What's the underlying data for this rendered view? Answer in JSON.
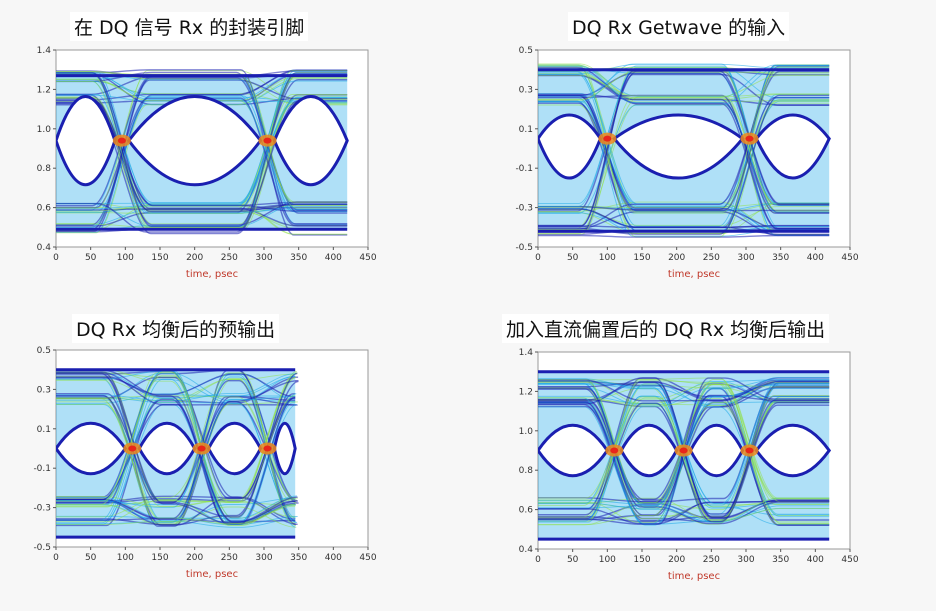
{
  "colors": {
    "eye_outer": "#1a1fb0",
    "eye_mid": "#1aa7e8",
    "eye_inner": "#8fe04a",
    "hot": "#f08a1a",
    "hot_core": "#e8261a",
    "axis_label": "#c0392b"
  },
  "chart_data": [
    {
      "type": "scatter",
      "title": "在 DQ 信号 Rx 的封装引脚",
      "xlabel": "time, psec",
      "ylabel": "",
      "xlim": [
        0,
        450
      ],
      "ylim": [
        0.4,
        1.4
      ],
      "xticks": [
        0,
        50,
        100,
        150,
        200,
        250,
        300,
        350,
        400,
        450
      ],
      "yticks": [
        0.4,
        0.6,
        0.8,
        1.0,
        1.2,
        1.4
      ],
      "xtick_labels": [
        "0",
        "50",
        "100",
        "150",
        "200",
        "250",
        "300",
        "350",
        "400",
        "450"
      ],
      "ytick_labels": [
        "0.4",
        "0.6",
        "0.8",
        "1.0",
        "1.2",
        "1.4"
      ],
      "data_xrange": [
        0,
        420
      ],
      "rails": {
        "high": 1.27,
        "low": 0.49
      },
      "high_levels": [
        1.15,
        1.27
      ],
      "low_levels": [
        0.6,
        0.49
      ],
      "crossings": [
        95,
        305
      ],
      "crossing_level": 0.94,
      "eye_opening": {
        "high": 1.22,
        "low": 0.66
      },
      "grid": false
    },
    {
      "type": "scatter",
      "title": "DQ Rx Getwave 的输入",
      "xlabel": "time, psec",
      "ylabel": "",
      "xlim": [
        0,
        450
      ],
      "ylim": [
        -0.5,
        0.5
      ],
      "xticks": [
        0,
        50,
        100,
        150,
        200,
        250,
        300,
        350,
        400,
        450
      ],
      "yticks": [
        -0.5,
        -0.3,
        -0.1,
        0.1,
        0.3,
        0.5
      ],
      "xtick_labels": [
        "0",
        "50",
        "100",
        "150",
        "200",
        "250",
        "300",
        "350",
        "400",
        "450"
      ],
      "ytick_labels": [
        "-0.5",
        "-0.3",
        "-0.1",
        "0.1",
        "0.3",
        "0.5"
      ],
      "data_xrange": [
        0,
        420
      ],
      "rails": {
        "high": 0.4,
        "low": -0.42
      },
      "high_levels": [
        0.25,
        0.4
      ],
      "low_levels": [
        -0.3,
        -0.42
      ],
      "crossings": [
        100,
        305
      ],
      "crossing_level": 0.05,
      "eye_opening": {
        "high": 0.2,
        "low": -0.2
      },
      "grid": false
    },
    {
      "type": "scatter",
      "title": "DQ Rx 均衡后的预输出",
      "xlabel": "time, psec",
      "ylabel": "",
      "xlim": [
        0,
        450
      ],
      "ylim": [
        -0.5,
        0.5
      ],
      "xticks": [
        0,
        50,
        100,
        150,
        200,
        250,
        300,
        350,
        400,
        450
      ],
      "yticks": [
        -0.5,
        -0.3,
        -0.1,
        0.1,
        0.3,
        0.5
      ],
      "xtick_labels": [
        "0",
        "50",
        "100",
        "150",
        "200",
        "250",
        "300",
        "350",
        "400",
        "450"
      ],
      "ytick_labels": [
        "-0.5",
        "-0.3",
        "-0.1",
        "0.1",
        "0.3",
        "0.5"
      ],
      "data_xrange": [
        0,
        345
      ],
      "rails": {
        "high": 0.4,
        "low": -0.45
      },
      "high_levels": [
        0.25,
        0.37
      ],
      "low_levels": [
        -0.27,
        -0.37
      ],
      "crossings": [
        110,
        210,
        305
      ],
      "crossing_level": 0.0,
      "eye_opening": {
        "high": 0.16,
        "low": -0.16
      },
      "grid": false
    },
    {
      "type": "scatter",
      "title": "加入直流偏置后的 DQ Rx 均衡后输出",
      "xlabel": "time, psec",
      "ylabel": "",
      "xlim": [
        0,
        450
      ],
      "ylim": [
        0.4,
        1.4
      ],
      "xticks": [
        0,
        50,
        100,
        150,
        200,
        250,
        300,
        350,
        400,
        450
      ],
      "yticks": [
        0.4,
        0.6,
        0.8,
        1.0,
        1.2,
        1.4
      ],
      "xtick_labels": [
        "0",
        "50",
        "100",
        "150",
        "200",
        "250",
        "300",
        "350",
        "400",
        "450"
      ],
      "ytick_labels": [
        "0.4",
        "0.6",
        "0.8",
        "1.0",
        "1.2",
        "1.4"
      ],
      "data_xrange": [
        0,
        420
      ],
      "rails": {
        "high": 1.3,
        "low": 0.45
      },
      "high_levels": [
        1.15,
        1.24
      ],
      "low_levels": [
        0.63,
        0.55
      ],
      "crossings": [
        110,
        210,
        305
      ],
      "crossing_level": 0.9,
      "eye_opening": {
        "high": 1.06,
        "low": 0.74
      },
      "grid": false
    }
  ]
}
